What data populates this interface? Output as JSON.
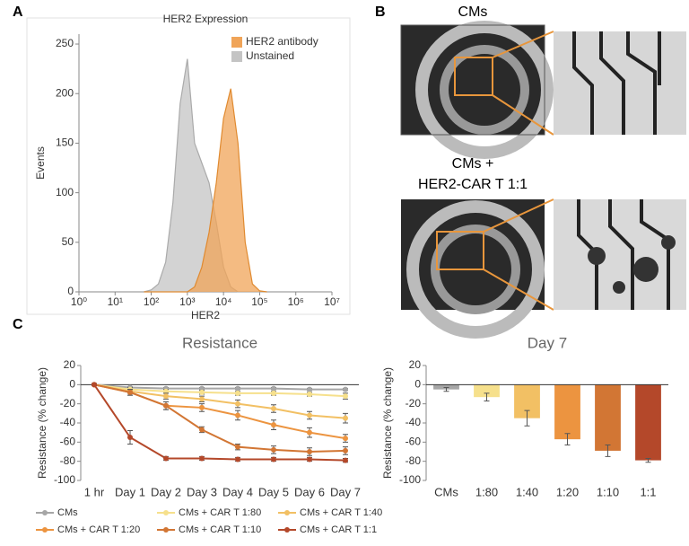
{
  "panels": {
    "labels": [
      "A",
      "B",
      "C"
    ],
    "b_captions": [
      "CMs",
      "CMs +",
      "HER2-CAR T 1:1"
    ]
  },
  "chart_data": [
    {
      "type": "area",
      "title": "HER2 Expression",
      "xlabel": "HER2",
      "ylabel": "Events",
      "xscale": "log",
      "xlim": [
        1,
        10000000
      ],
      "xticks": [
        {
          "value": 1,
          "label": "10⁰"
        },
        {
          "value": 10,
          "label": "10¹"
        },
        {
          "value": 100,
          "label": "10²"
        },
        {
          "value": 1000,
          "label": "10³"
        },
        {
          "value": 10000,
          "label": "10⁴"
        },
        {
          "value": 100000,
          "label": "10⁵"
        },
        {
          "value": 1000000,
          "label": "10⁶"
        },
        {
          "value": 10000000,
          "label": "10⁷"
        }
      ],
      "ylim": [
        0,
        260
      ],
      "yticks": [
        0,
        50,
        100,
        150,
        200,
        250
      ],
      "legend": "upper right",
      "x": [
        63,
        100,
        158,
        251,
        398,
        631,
        1000,
        1585,
        2512,
        3981,
        6310,
        10000,
        15849,
        25119,
        39811,
        63096,
        100000,
        158489
      ],
      "series": [
        {
          "name": "HER2 antibody",
          "color": "#f0a458",
          "values": [
            0,
            0,
            0,
            0,
            0,
            0,
            0,
            5,
            25,
            60,
            110,
            175,
            205,
            150,
            50,
            8,
            1,
            0
          ]
        },
        {
          "name": "Unstained",
          "color": "#c4c4c4",
          "values": [
            0,
            2,
            8,
            30,
            90,
            190,
            235,
            150,
            130,
            110,
            70,
            25,
            5,
            0,
            0,
            0,
            0,
            0
          ]
        }
      ]
    },
    {
      "type": "line",
      "title": "Resistance",
      "ylabel": "Resistance (% change)",
      "categories": [
        "1 hr",
        "Day 1",
        "Day 2",
        "Day 3",
        "Day 4",
        "Day 5",
        "Day 6",
        "Day 7"
      ],
      "ylim": [
        -100,
        20
      ],
      "yticks": [
        -100,
        -80,
        -60,
        -40,
        -20,
        0,
        20
      ],
      "legend": "bottom",
      "series": [
        {
          "name": "CMs",
          "color": "#a6a6a6",
          "values": [
            0,
            -3,
            -4,
            -4,
            -4,
            -4,
            -5,
            -5
          ],
          "errors": [
            1,
            1,
            1,
            1,
            1,
            1,
            1,
            1
          ]
        },
        {
          "name": "CMs + CAR T 1:80",
          "color": "#f6e08c",
          "values": [
            0,
            -5,
            -7,
            -8,
            -9,
            -9,
            -10,
            -12
          ],
          "errors": [
            1,
            2,
            2,
            2,
            2,
            2,
            2,
            3
          ]
        },
        {
          "name": "CMs + CAR T 1:40",
          "color": "#f2c064",
          "values": [
            0,
            -7,
            -12,
            -15,
            -20,
            -25,
            -32,
            -35
          ],
          "errors": [
            1,
            2,
            3,
            3,
            4,
            4,
            4,
            5
          ]
        },
        {
          "name": "CMs + CAR T 1:20",
          "color": "#ec9440",
          "values": [
            0,
            -8,
            -22,
            -24,
            -32,
            -42,
            -50,
            -56
          ],
          "errors": [
            1,
            3,
            4,
            4,
            5,
            5,
            5,
            4
          ]
        },
        {
          "name": "CMs + CAR T 1:10",
          "color": "#d27634",
          "values": [
            0,
            -8,
            -22,
            -47,
            -65,
            -68,
            -70,
            -69
          ],
          "errors": [
            1,
            3,
            4,
            3,
            3,
            4,
            4,
            4
          ]
        },
        {
          "name": "CMs + CAR T 1:1",
          "color": "#b4482a",
          "values": [
            0,
            -55,
            -77,
            -77,
            -78,
            -78,
            -78,
            -79
          ],
          "errors": [
            1,
            7,
            2,
            2,
            2,
            2,
            2,
            2
          ]
        }
      ]
    },
    {
      "type": "bar",
      "title": "Day 7",
      "ylabel": "Resistance (% change)",
      "categories": [
        "CMs",
        "1:80",
        "1:40",
        "1:20",
        "1:10",
        "1:1"
      ],
      "ylim": [
        -100,
        20
      ],
      "yticks": [
        -100,
        -80,
        -60,
        -40,
        -20,
        0,
        20
      ],
      "values": [
        -5,
        -13,
        -35,
        -57,
        -69,
        -79
      ],
      "errors": [
        2,
        4,
        8,
        6,
        6,
        2
      ],
      "colors": [
        "#a6a6a6",
        "#f6e08c",
        "#f2c064",
        "#ec9440",
        "#d27634",
        "#b4482a"
      ]
    }
  ]
}
